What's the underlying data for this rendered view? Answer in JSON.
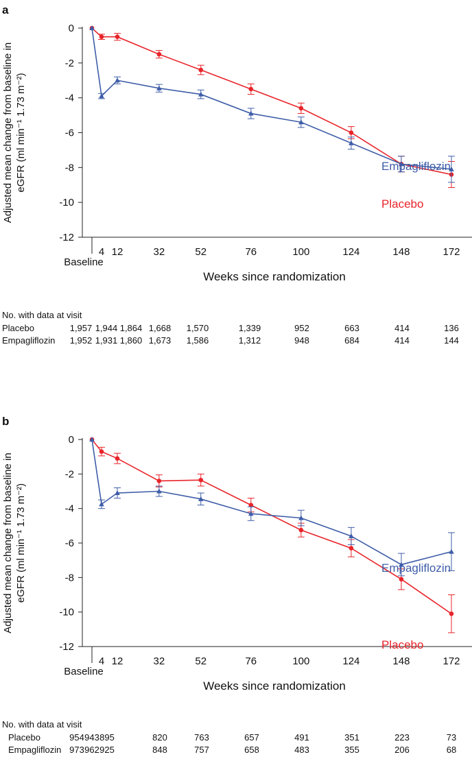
{
  "chart_data": [
    {
      "panel_label": "a",
      "type": "line",
      "xlabel": "Weeks since randomization",
      "ylabel_line1": "Adjusted mean change from baseline in",
      "ylabel_line2": "eGFR (ml min⁻¹ 1.73 m⁻²)",
      "baseline_label": "Baseline",
      "x": [
        0,
        4,
        12,
        32,
        52,
        76,
        100,
        124,
        148,
        172
      ],
      "x_tick_labels": [
        "4",
        "12",
        "32",
        "52",
        "76",
        "100",
        "124",
        "148",
        "172"
      ],
      "ylim": [
        -12,
        0
      ],
      "y_ticks": [
        0,
        -2,
        -4,
        -6,
        -8,
        -10,
        -12
      ],
      "grid": false,
      "series": [
        {
          "name": "Placebo",
          "color": "#e8242a",
          "marker": "circle",
          "values": [
            0,
            -0.5,
            -0.5,
            -1.5,
            -2.4,
            -3.5,
            -4.6,
            -6.0,
            -7.8,
            -8.4
          ],
          "error": [
            0,
            0.15,
            0.2,
            0.22,
            0.27,
            0.3,
            0.3,
            0.35,
            0.45,
            0.75
          ]
        },
        {
          "name": "Empagliflozin",
          "color": "#3e5da8",
          "marker": "triangle",
          "values": [
            0,
            -3.9,
            -3.0,
            -3.45,
            -3.8,
            -4.9,
            -5.4,
            -6.6,
            -7.8,
            -8.1
          ],
          "error": [
            0,
            0.15,
            0.2,
            0.22,
            0.25,
            0.3,
            0.3,
            0.35,
            0.45,
            0.75
          ]
        }
      ],
      "table": {
        "title": "No. with data at visit",
        "rows": [
          {
            "label": "Placebo",
            "values": [
              "1,957",
              "1,944",
              "1,864",
              "1,668",
              "1,570",
              "1,339",
              "952",
              "663",
              "414",
              "136"
            ]
          },
          {
            "label": "Empagliflozin",
            "values": [
              "1,952",
              "1,931",
              "1,860",
              "1,673",
              "1,586",
              "1,312",
              "948",
              "684",
              "414",
              "144"
            ]
          }
        ]
      }
    },
    {
      "panel_label": "b",
      "type": "line",
      "xlabel": "Weeks since randomization",
      "ylabel_line1": "Adjusted mean change from baseline in",
      "ylabel_line2": "eGFR (ml min⁻¹ 1.73 m⁻²)",
      "baseline_label": "Baseline",
      "x": [
        0,
        4,
        12,
        32,
        52,
        76,
        100,
        124,
        148,
        172
      ],
      "x_tick_labels": [
        "4",
        "12",
        "32",
        "52",
        "76",
        "100",
        "124",
        "148",
        "172"
      ],
      "ylim": [
        -12,
        0
      ],
      "y_ticks": [
        0,
        -2,
        -4,
        -6,
        -8,
        -10,
        -12
      ],
      "grid": false,
      "series": [
        {
          "name": "Placebo",
          "color": "#e8242a",
          "marker": "circle",
          "values": [
            0,
            -0.7,
            -1.1,
            -2.4,
            -2.35,
            -3.8,
            -5.25,
            -6.3,
            -8.1,
            -10.1
          ],
          "error": [
            0,
            0.25,
            0.3,
            0.35,
            0.35,
            0.4,
            0.4,
            0.5,
            0.6,
            1.1
          ]
        },
        {
          "name": "Empagliflozin",
          "color": "#3e5da8",
          "marker": "triangle",
          "values": [
            0,
            -3.75,
            -3.1,
            -3.0,
            -3.45,
            -4.3,
            -4.55,
            -5.6,
            -7.25,
            -6.5
          ],
          "error": [
            0,
            0.25,
            0.3,
            0.3,
            0.35,
            0.4,
            0.45,
            0.5,
            0.65,
            1.1
          ]
        }
      ],
      "table": {
        "title": "No. with data at visit",
        "rows": [
          {
            "label": "Placebo",
            "values": [
              "954",
              "943",
              "895",
              "820",
              "763",
              "657",
              "491",
              "351",
              "223",
              "73"
            ]
          },
          {
            "label": "Empagliflozin",
            "values": [
              "973",
              "962",
              "925",
              "848",
              "757",
              "658",
              "483",
              "355",
              "206",
              "68"
            ]
          }
        ]
      }
    }
  ]
}
